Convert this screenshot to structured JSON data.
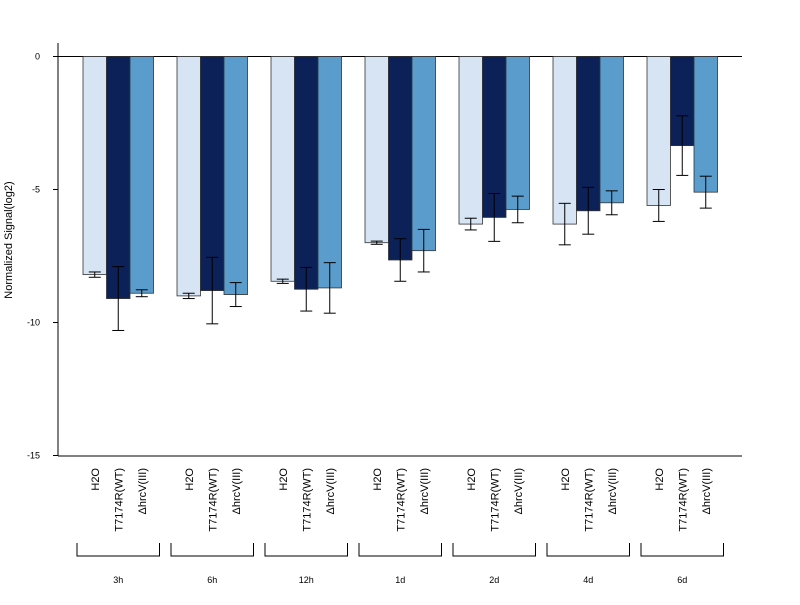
{
  "chart_data": {
    "type": "bar",
    "title": "",
    "xlabel": "",
    "ylabel": "Normalized Signal(log2)",
    "ylim": [
      -15,
      0.5
    ],
    "yticks": [
      0,
      -5,
      -10,
      -15
    ],
    "grid": false,
    "legend": "none",
    "groups": [
      "3h",
      "6h",
      "12h",
      "1d",
      "2d",
      "4d",
      "6d"
    ],
    "series": [
      {
        "name": "H2O",
        "color": "#d6e4f4",
        "values": [
          -8.2,
          -9.0,
          -8.45,
          -7.0,
          -6.3,
          -6.3,
          -5.6
        ],
        "error": [
          0.1,
          0.1,
          0.08,
          0.06,
          0.22,
          0.78,
          0.6
        ]
      },
      {
        "name": "T7174R(WT)",
        "color": "#0b2158",
        "values": [
          -9.1,
          -8.8,
          -8.75,
          -7.65,
          -6.05,
          -5.8,
          -3.35
        ],
        "error": [
          1.2,
          1.25,
          0.82,
          0.8,
          0.9,
          0.88,
          1.12
        ]
      },
      {
        "name": "ΔhrcV(III)",
        "color": "#5a9dcc",
        "values": [
          -8.9,
          -8.95,
          -8.7,
          -7.3,
          -5.75,
          -5.5,
          -5.1
        ],
        "error": [
          0.13,
          0.45,
          0.95,
          0.8,
          0.5,
          0.45,
          0.6
        ]
      }
    ],
    "category_labels": [
      "H2O",
      "T7174R(WT)",
      "ΔhrcV(III)"
    ]
  }
}
